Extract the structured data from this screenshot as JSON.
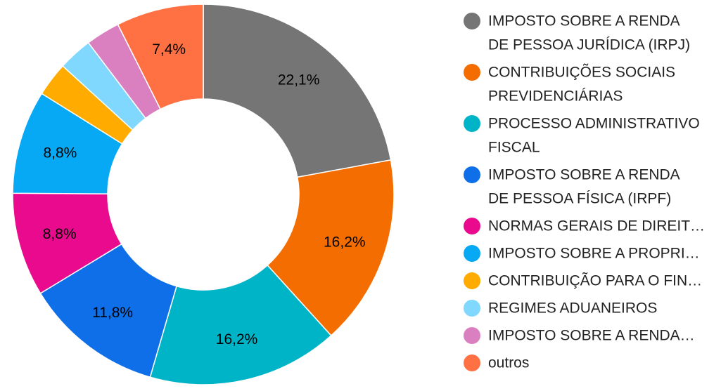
{
  "chart_data": {
    "type": "pie",
    "donut": true,
    "legend_position": "right",
    "slices": [
      {
        "label": "IMPOSTO SOBRE A RENDA DE PESSOA JURÍDICA (IRPJ)",
        "legend_lines": [
          "IMPOSTO SOBRE A RENDA",
          "DE PESSOA JURÍDICA (IRPJ)"
        ],
        "value": 22.1,
        "value_label": "22,1%",
        "color": "#757575"
      },
      {
        "label": "CONTRIBUIÇÕES SOCIAIS PREVIDENCIÁRIAS",
        "legend_lines": [
          "CONTRIBUIÇÕES SOCIAIS",
          "PREVIDENCIÁRIAS"
        ],
        "value": 16.2,
        "value_label": "16,2%",
        "color": "#f46d00"
      },
      {
        "label": "PROCESSO ADMINISTRATIVO FISCAL",
        "legend_lines": [
          "PROCESSO ADMINISTRATIVO",
          "FISCAL"
        ],
        "value": 16.2,
        "value_label": "16,2%",
        "color": "#00b4c8"
      },
      {
        "label": "IMPOSTO SOBRE A RENDA DE PESSOA FÍSICA (IRPF)",
        "legend_lines": [
          "IMPOSTO SOBRE A RENDA",
          "DE PESSOA FÍSICA (IRPF)"
        ],
        "value": 11.8,
        "value_label": "11,8%",
        "color": "#0f6fe8"
      },
      {
        "label": "NORMAS GERAIS DE DIREIT…",
        "legend_lines": [
          "NORMAS GERAIS DE DIREIT…"
        ],
        "value": 8.8,
        "value_label": "8,8%",
        "color": "#ea0a8e"
      },
      {
        "label": "IMPOSTO SOBRE A PROPRI…",
        "legend_lines": [
          "IMPOSTO SOBRE A PROPRI…"
        ],
        "value": 8.8,
        "value_label": "8,8%",
        "color": "#07a9f4"
      },
      {
        "label": "CONTRIBUIÇÃO PARA O FIN…",
        "legend_lines": [
          "CONTRIBUIÇÃO PARA O FIN…"
        ],
        "value": 2.9,
        "value_label": "",
        "color": "#ffab00"
      },
      {
        "label": "REGIMES ADUANEIROS",
        "legend_lines": [
          "REGIMES ADUANEIROS"
        ],
        "value": 2.9,
        "value_label": "",
        "color": "#80d8ff"
      },
      {
        "label": "IMPOSTO SOBRE A RENDA…",
        "legend_lines": [
          "IMPOSTO SOBRE A RENDA…"
        ],
        "value": 2.9,
        "value_label": "",
        "color": "#da7fbf"
      },
      {
        "label": "outros",
        "legend_lines": [
          "outros"
        ],
        "value": 7.4,
        "value_label": "7,4%",
        "color": "#ff7043"
      }
    ]
  }
}
